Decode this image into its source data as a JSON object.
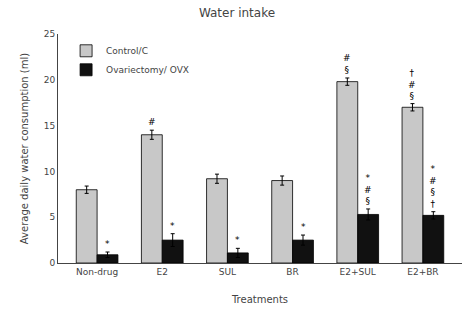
{
  "chart_data": {
    "type": "bar",
    "title": "Water intake",
    "xlabel": "Treatments",
    "ylabel": "Average daily water consumption (ml)",
    "categories": [
      "Non-drug",
      "E2",
      "SUL",
      "BR",
      "E2+SUL",
      "E2+BR"
    ],
    "series": [
      {
        "name": "Control/C",
        "color": "#c8c8c8",
        "values": [
          8.0,
          14.0,
          9.2,
          9.0,
          19.8,
          17.0
        ],
        "errors": [
          0.4,
          0.5,
          0.5,
          0.5,
          0.4,
          0.4
        ]
      },
      {
        "name": "Ovariectomy/ OVX",
        "color": "#111111",
        "values": [
          0.9,
          2.5,
          1.1,
          2.5,
          5.3,
          5.2
        ],
        "errors": [
          0.3,
          0.7,
          0.5,
          0.55,
          0.6,
          0.4
        ]
      }
    ],
    "ylim": [
      0,
      25
    ],
    "yticks": [
      0,
      5,
      10,
      15,
      20,
      25
    ],
    "grid": false,
    "legend": "upper left",
    "annotations": [
      {
        "category": "E2",
        "series": "Control/C",
        "text": [
          "#"
        ]
      },
      {
        "category": "E2+SUL",
        "series": "Control/C",
        "text": [
          "§",
          "#"
        ]
      },
      {
        "category": "E2+BR",
        "series": "Control/C",
        "text": [
          "§",
          "#",
          "†"
        ]
      },
      {
        "category": "Non-drug",
        "series": "Ovariectomy/ OVX",
        "text": [
          "*"
        ]
      },
      {
        "category": "E2",
        "series": "Ovariectomy/ OVX",
        "text": [
          "*"
        ]
      },
      {
        "category": "SUL",
        "series": "Ovariectomy/ OVX",
        "text": [
          "*"
        ]
      },
      {
        "category": "BR",
        "series": "Ovariectomy/ OVX",
        "text": [
          "*"
        ]
      },
      {
        "category": "E2+SUL",
        "series": "Ovariectomy/ OVX",
        "text": [
          "§",
          "#",
          "*"
        ]
      },
      {
        "category": "E2+BR",
        "series": "Ovariectomy/ OVX",
        "text": [
          "†",
          "§",
          "#",
          "*"
        ]
      }
    ]
  }
}
